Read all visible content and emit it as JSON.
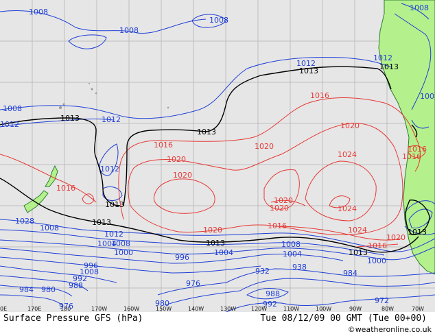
{
  "map": {
    "title": "Surface Pressure GFS (hPa)",
    "valid_time": "Tue 08/12/09 00 GMT (Tue 00+00)",
    "credit": "©weatheronline.co.uk",
    "colors": {
      "ocean": "#e6e6e6",
      "land": "#b4f08c",
      "coast": "#2e7d32",
      "grid": "#bdbdbd",
      "low_isobar": "#1f3fd6",
      "high_isobar": "#e53935",
      "ref_isobar": "#000000"
    },
    "longitude_ticks": [
      "0E",
      "170E",
      "180",
      "170W",
      "160W",
      "150W",
      "140W",
      "130W",
      "120W",
      "110W",
      "100W",
      "90W",
      "80W",
      "70W"
    ],
    "isobar_labels": [
      {
        "text": "1008",
        "kind": "low"
      },
      {
        "text": "1008",
        "kind": "low"
      },
      {
        "text": "1008",
        "kind": "low"
      },
      {
        "text": "1008",
        "kind": "low"
      },
      {
        "text": "1012",
        "kind": "low"
      },
      {
        "text": "1012",
        "kind": "low"
      },
      {
        "text": "1012",
        "kind": "low"
      },
      {
        "text": "1012",
        "kind": "low"
      },
      {
        "text": "1012",
        "kind": "low"
      },
      {
        "text": "100",
        "kind": "low"
      },
      {
        "text": "1013",
        "kind": "ref"
      },
      {
        "text": "1013",
        "kind": "ref"
      },
      {
        "text": "1013",
        "kind": "ref"
      },
      {
        "text": "1013",
        "kind": "ref"
      },
      {
        "text": "1013",
        "kind": "ref"
      },
      {
        "text": "1013",
        "kind": "ref"
      },
      {
        "text": "1013",
        "kind": "ref"
      },
      {
        "text": "1013",
        "kind": "ref"
      },
      {
        "text": "1013",
        "kind": "ref"
      },
      {
        "text": "1016",
        "kind": "high"
      },
      {
        "text": "1016",
        "kind": "high"
      },
      {
        "text": "1016",
        "kind": "high"
      },
      {
        "text": "1016",
        "kind": "high"
      },
      {
        "text": "1016",
        "kind": "high"
      },
      {
        "text": "1016",
        "kind": "high"
      },
      {
        "text": "1016",
        "kind": "high"
      },
      {
        "text": "1020",
        "kind": "high"
      },
      {
        "text": "1020",
        "kind": "high"
      },
      {
        "text": "1020",
        "kind": "high"
      },
      {
        "text": "1020",
        "kind": "high"
      },
      {
        "text": "1020",
        "kind": "high"
      },
      {
        "text": "1020",
        "kind": "high"
      },
      {
        "text": "1020",
        "kind": "high"
      },
      {
        "text": "1020",
        "kind": "high"
      },
      {
        "text": "1024",
        "kind": "high"
      },
      {
        "text": "1024",
        "kind": "high"
      },
      {
        "text": "1024",
        "kind": "high"
      },
      {
        "text": "1028",
        "kind": "high"
      },
      {
        "text": "1008",
        "kind": "low"
      },
      {
        "text": "1004",
        "kind": "low"
      },
      {
        "text": "1012",
        "kind": "low"
      },
      {
        "text": "1008",
        "kind": "low"
      },
      {
        "text": "1000",
        "kind": "low"
      },
      {
        "text": "996",
        "kind": "low"
      },
      {
        "text": "1004",
        "kind": "low"
      },
      {
        "text": "1008",
        "kind": "low"
      },
      {
        "text": "1004",
        "kind": "low"
      },
      {
        "text": "1000",
        "kind": "low"
      },
      {
        "text": "996",
        "kind": "low"
      },
      {
        "text": "1008",
        "kind": "low"
      },
      {
        "text": "992",
        "kind": "low"
      },
      {
        "text": "988",
        "kind": "low"
      },
      {
        "text": "984",
        "kind": "low"
      },
      {
        "text": "980",
        "kind": "low"
      },
      {
        "text": "976",
        "kind": "low"
      },
      {
        "text": "976",
        "kind": "low"
      },
      {
        "text": "980",
        "kind": "low"
      },
      {
        "text": "932",
        "kind": "low"
      },
      {
        "text": "938",
        "kind": "low"
      },
      {
        "text": "984",
        "kind": "low"
      },
      {
        "text": "988",
        "kind": "low"
      },
      {
        "text": "992",
        "kind": "low"
      },
      {
        "text": "972",
        "kind": "low"
      },
      {
        "text": "976",
        "kind": "low"
      },
      {
        "text": "988",
        "kind": "low"
      }
    ]
  }
}
